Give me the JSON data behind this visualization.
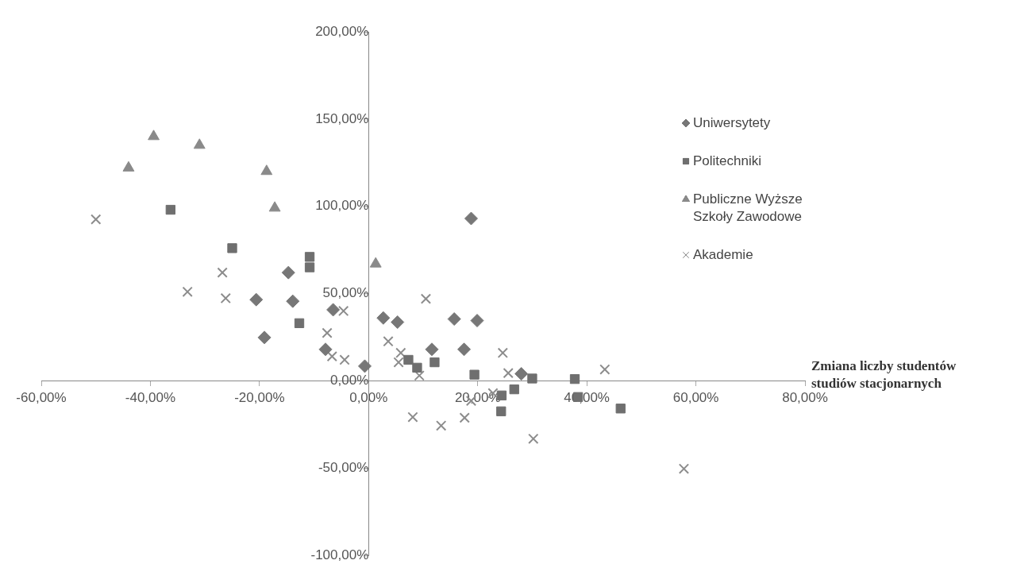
{
  "chart_data": {
    "type": "scatter",
    "xlabel": "Zmiana liczby studentów studiów stacjonarnych",
    "xlim": [
      -60,
      80
    ],
    "xticks": [
      {
        "value": -60,
        "label": "-60,00%"
      },
      {
        "value": -40,
        "label": "-40,00%"
      },
      {
        "value": -20,
        "label": "-20,00%"
      },
      {
        "value": 0,
        "label": "0,00%"
      },
      {
        "value": 20,
        "label": "20,00%"
      },
      {
        "value": 40,
        "label": "40,00%"
      },
      {
        "value": 60,
        "label": "60,00%"
      },
      {
        "value": 80,
        "label": "80,00%"
      }
    ],
    "ylim": [
      -100,
      200
    ],
    "yticks": [
      {
        "value": -100,
        "label": "-100,00%"
      },
      {
        "value": -50,
        "label": "-50,00%"
      },
      {
        "value": 0,
        "label": "0,00%"
      },
      {
        "value": 50,
        "label": "50,00%"
      },
      {
        "value": 100,
        "label": "100,00%"
      },
      {
        "value": 150,
        "label": "150,00%"
      },
      {
        "value": 200,
        "label": "200,00%"
      }
    ],
    "legend": "top right",
    "series": [
      {
        "name": "Uniwersytety",
        "color": "#777777",
        "marker": "diamond",
        "x": [
          -14.7,
          -20.6,
          -13.9,
          -6.5,
          -19.1,
          -7.9,
          -0.7,
          2.7,
          5.3,
          15.7,
          19.9,
          17.5,
          11.6,
          18.8,
          28
        ],
        "values": [
          62,
          46.5,
          45.6,
          40.7,
          24.8,
          18,
          8.4,
          36,
          33.6,
          35.4,
          34.5,
          18,
          18,
          93,
          4
        ]
      },
      {
        "name": "Politechniki",
        "color": "#6f6f6f",
        "marker": "square",
        "x": [
          -36.3,
          -25,
          -10.8,
          -10.8,
          -12.7,
          7.3,
          8.9,
          12.1,
          19.4,
          24.4,
          24.3,
          26.7,
          30,
          37.8,
          38.4,
          46.2
        ],
        "values": [
          98,
          76,
          71,
          65,
          33,
          12,
          7.5,
          10.6,
          3.5,
          -8.4,
          -17.5,
          -4.9,
          1.3,
          1,
          -9.3,
          -15.9
        ]
      },
      {
        "name": "Publiczne Wyższe Szkoły Zawodowe",
        "color": "#8a8a8a",
        "marker": "triangle",
        "x": [
          -39.4,
          -31,
          -44,
          -18.7,
          -17.2,
          1.3
        ],
        "values": [
          140,
          135,
          122,
          120,
          99,
          67
        ]
      },
      {
        "name": "Akademie",
        "color": "#8c8c8c",
        "marker": "cross",
        "x": [
          -50,
          -26.8,
          -33.2,
          -26.2,
          -4.6,
          -7.6,
          -6.7,
          -4.4,
          10.5,
          3.6,
          5.9,
          5.5,
          9.3,
          24.6,
          25.6,
          22.8,
          18.8,
          17.6,
          8.1,
          13.3,
          30.2,
          43.3,
          57.8
        ],
        "values": [
          92.5,
          62,
          51,
          47.3,
          40,
          27.4,
          14,
          12,
          47,
          22.6,
          16,
          10.6,
          3,
          16,
          4.4,
          -7.1,
          -11.5,
          -21.2,
          -20.8,
          -25.7,
          -33.2,
          6.5,
          -50.4
        ]
      }
    ]
  }
}
